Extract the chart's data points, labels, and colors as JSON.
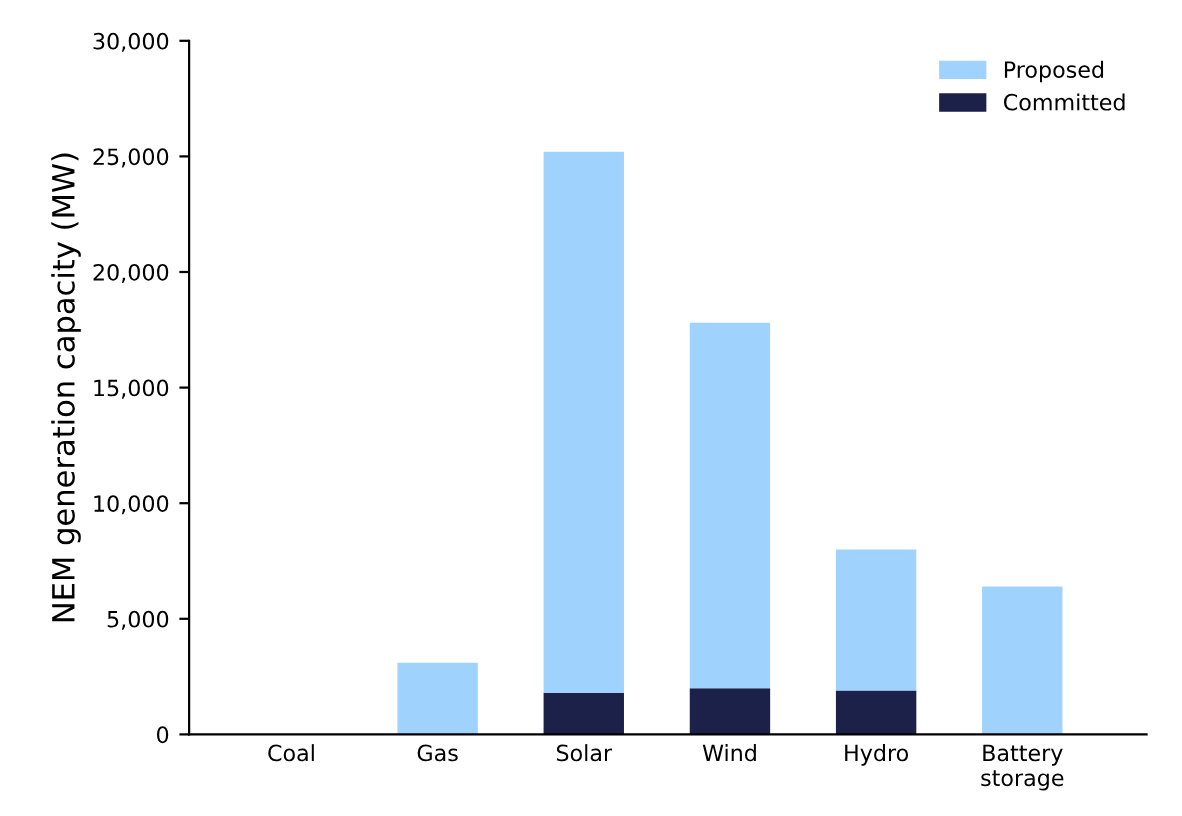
{
  "chart_data": {
    "type": "bar",
    "stacked": true,
    "ylabel": "NEM generation capacity (MW)",
    "categories": [
      "Coal",
      "Gas",
      "Solar",
      "Wind",
      "Hydro",
      "Battery\nstorage"
    ],
    "series": [
      {
        "name": "Committed",
        "color": "#1b2149",
        "values": [
          0,
          0,
          1800,
          2000,
          1900,
          0
        ]
      },
      {
        "name": "Proposed",
        "color": "#9fd3fd",
        "values": [
          0,
          3100,
          23400,
          15800,
          6100,
          6400
        ]
      }
    ],
    "ylim": [
      0,
      30000
    ],
    "yticks": [
      {
        "value": 0,
        "label": "0"
      },
      {
        "value": 5000,
        "label": "5,000"
      },
      {
        "value": 10000,
        "label": "10,000"
      },
      {
        "value": 15000,
        "label": "15,000"
      },
      {
        "value": 20000,
        "label": "20,000"
      },
      {
        "value": 25000,
        "label": "25,000"
      },
      {
        "value": 30000,
        "label": "30,000"
      }
    ],
    "grid": false,
    "legend": "top right"
  }
}
